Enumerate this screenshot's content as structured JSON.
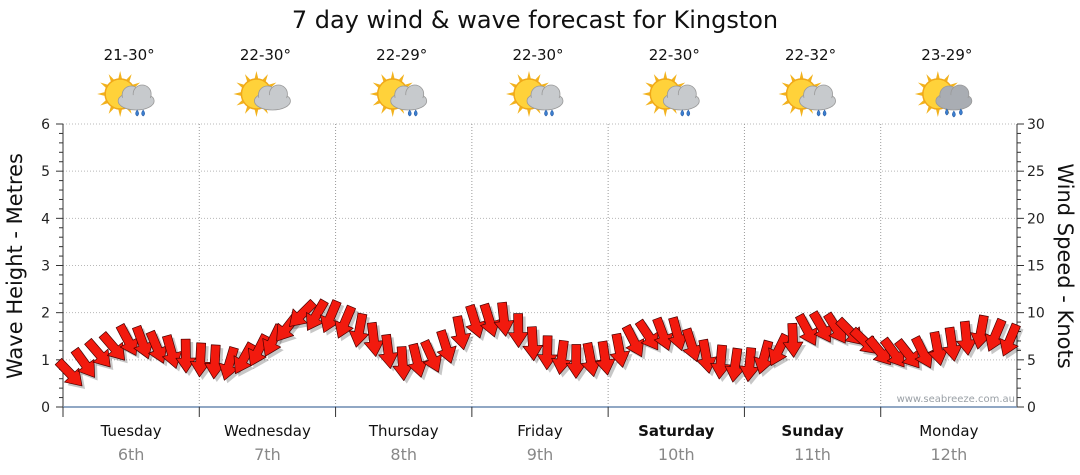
{
  "chart_data": {
    "type": "line",
    "title": "7 day wind & wave forecast for Kingston",
    "ylabel_left": "Wave Height - Metres",
    "ylabel_right": "Wind Speed - Knots",
    "ylim_left": [
      0,
      6
    ],
    "ylim_right": [
      0,
      30
    ],
    "yticks_left": [
      "0",
      "1",
      "2",
      "3",
      "4",
      "5",
      "6"
    ],
    "yticks_right": [
      "0",
      "5",
      "10",
      "15",
      "20",
      "25",
      "30"
    ],
    "grid": true,
    "credit": "www.seabreeze.com.au",
    "days": [
      {
        "day": "Tuesday",
        "date": "6th",
        "temp": "21-30°",
        "icon": "partly-cloudy-showers-icon",
        "bold": false
      },
      {
        "day": "Wednesday",
        "date": "7th",
        "temp": "22-30°",
        "icon": "partly-cloudy-icon",
        "bold": false
      },
      {
        "day": "Thursday",
        "date": "8th",
        "temp": "22-29°",
        "icon": "partly-cloudy-showers-icon",
        "bold": false
      },
      {
        "day": "Friday",
        "date": "9th",
        "temp": "22-30°",
        "icon": "partly-cloudy-showers-icon",
        "bold": false
      },
      {
        "day": "Saturday",
        "date": "10th",
        "temp": "22-30°",
        "icon": "partly-cloudy-showers-icon",
        "bold": true
      },
      {
        "day": "Sunday",
        "date": "11th",
        "temp": "22-32°",
        "icon": "partly-cloudy-showers-icon",
        "bold": true
      },
      {
        "day": "Monday",
        "date": "12th",
        "temp": "23-29°",
        "icon": "partly-cloudy-rain-icon",
        "bold": false
      }
    ],
    "wind_series": {
      "name": "Wind",
      "x_day": [
        0.0,
        0.25,
        0.5,
        0.75,
        1.0,
        1.25,
        1.5,
        1.75,
        2.0,
        2.25,
        2.5,
        2.75,
        3.0,
        3.25,
        3.5,
        3.75,
        4.0,
        4.25,
        4.5,
        4.75,
        5.0,
        5.25,
        5.5,
        5.75,
        6.0,
        6.25,
        6.5,
        6.75,
        7.0
      ],
      "knots": [
        3.0,
        5.5,
        7.2,
        6.0,
        5.0,
        4.5,
        6.5,
        9.8,
        9.5,
        7.5,
        4.5,
        5.5,
        9.0,
        9.3,
        6.0,
        4.8,
        5.2,
        7.5,
        7.8,
        5.0,
        4.2,
        6.0,
        8.5,
        8.2,
        5.8,
        5.5,
        6.5,
        8.0,
        6.8
      ],
      "direction_deg": [
        45,
        50,
        60,
        75,
        90,
        110,
        120,
        130,
        115,
        90,
        80,
        70,
        75,
        80,
        95,
        90,
        80,
        60,
        70,
        85,
        100,
        110,
        60,
        50,
        45,
        60,
        80,
        100,
        120
      ]
    }
  }
}
